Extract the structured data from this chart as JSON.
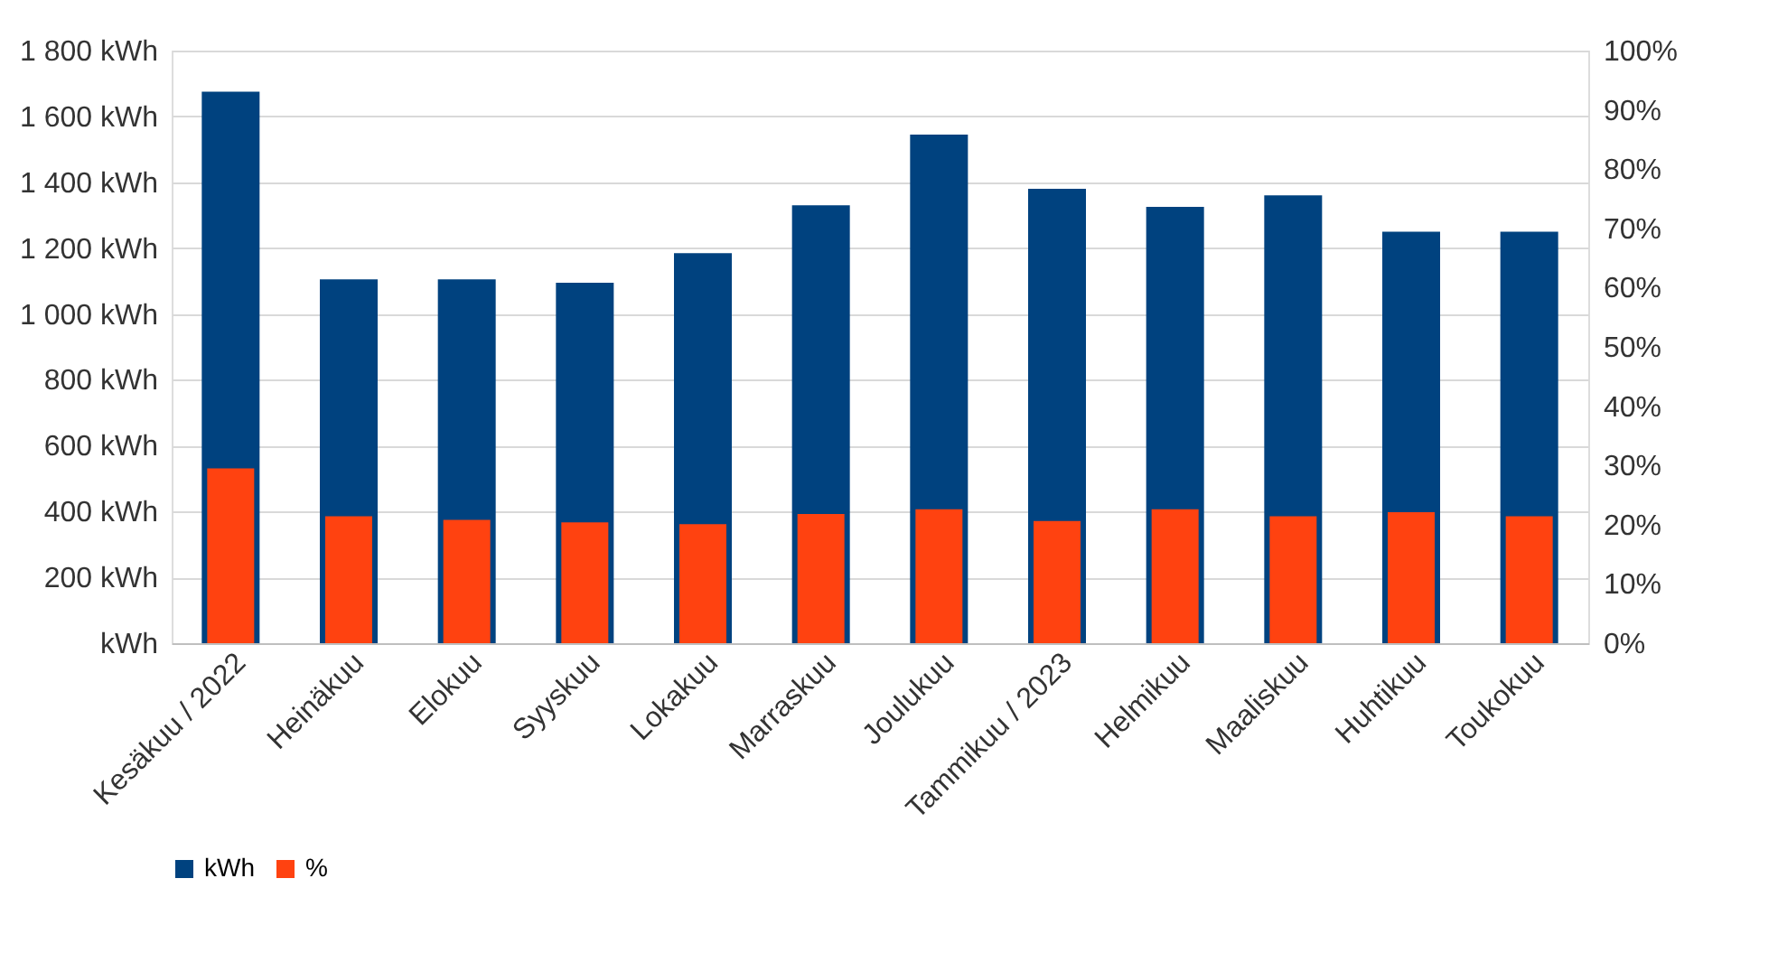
{
  "chart_data": {
    "type": "bar",
    "categories": [
      "Kesäkuu / 2022",
      "Heinäkuu",
      "Elokuu",
      "Syyskuu",
      "Lokakuu",
      "Marraskuu",
      "Joulukuu",
      "Tammikuu / 2023",
      "Helmikuu",
      "Maaliskuu",
      "Huhtikuu",
      "Toukokuu"
    ],
    "series": [
      {
        "name": "kWh",
        "color": "#00427f",
        "values": [
          1675,
          1105,
          1105,
          1095,
          1185,
          1330,
          1545,
          1380,
          1325,
          1360,
          1250,
          1250
        ]
      },
      {
        "name": "%",
        "color": "#ff4210",
        "axis": "y2",
        "values": [
          29.5,
          21.4,
          20.8,
          20.4,
          20.1,
          21.8,
          22.6,
          20.6,
          22.6,
          21.4,
          22.1,
          21.4
        ]
      }
    ],
    "ylim": [
      0,
      1800
    ],
    "yticks": [
      {
        "value": 0,
        "label": "kWh"
      },
      {
        "value": 200,
        "label": "200 kWh"
      },
      {
        "value": 400,
        "label": "400 kWh"
      },
      {
        "value": 600,
        "label": "600 kWh"
      },
      {
        "value": 800,
        "label": "800 kWh"
      },
      {
        "value": 1000,
        "label": "1 000 kWh"
      },
      {
        "value": 1200,
        "label": "1 200 kWh"
      },
      {
        "value": 1400,
        "label": "1 400 kWh"
      },
      {
        "value": 1600,
        "label": "1 600 kWh"
      },
      {
        "value": 1800,
        "label": "1 800 kWh"
      }
    ],
    "y2lim": [
      0,
      100
    ],
    "y2ticks": [
      {
        "value": 0,
        "label": "0%"
      },
      {
        "value": 10,
        "label": "10%"
      },
      {
        "value": 20,
        "label": "20%"
      },
      {
        "value": 30,
        "label": "30%"
      },
      {
        "value": 40,
        "label": "40%"
      },
      {
        "value": 50,
        "label": "50%"
      },
      {
        "value": 60,
        "label": "60%"
      },
      {
        "value": 70,
        "label": "70%"
      },
      {
        "value": 80,
        "label": "80%"
      },
      {
        "value": 90,
        "label": "90%"
      },
      {
        "value": 100,
        "label": "100%"
      }
    ],
    "grid": "y",
    "legend": "bottom"
  }
}
